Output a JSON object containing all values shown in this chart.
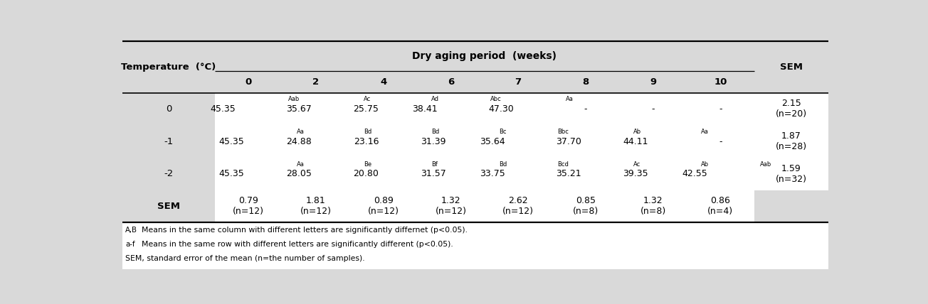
{
  "title": "Dry aging period (weeks)",
  "col_headers": [
    "0",
    "2",
    "4",
    "6",
    "7",
    "8",
    "9",
    "10"
  ],
  "row_labels": [
    "0",
    "-1",
    "-2",
    "SEM"
  ],
  "cell_data": [
    [
      [
        "45.35",
        "Aab"
      ],
      [
        "35.67",
        "Ac"
      ],
      [
        "25.75",
        "Ad"
      ],
      [
        "38.41",
        "Abc"
      ],
      [
        "47.30",
        "Aa"
      ],
      [
        "-",
        ""
      ],
      [
        "-",
        ""
      ],
      [
        "-",
        ""
      ]
    ],
    [
      [
        "45.35",
        "Aa"
      ],
      [
        "24.88",
        "Bd"
      ],
      [
        "23.16",
        "Bd"
      ],
      [
        "31.39",
        "Bc"
      ],
      [
        "35.64",
        "Bbc"
      ],
      [
        "37.70",
        "Ab"
      ],
      [
        "44.11",
        "Aa"
      ],
      [
        "-",
        ""
      ]
    ],
    [
      [
        "45.35",
        "Aa"
      ],
      [
        "28.05",
        "Be"
      ],
      [
        "20.80",
        "Bf"
      ],
      [
        "31.57",
        "Bd"
      ],
      [
        "33.75",
        "Bcd"
      ],
      [
        "35.21",
        "Ac"
      ],
      [
        "39.35",
        "Ab"
      ],
      [
        "42.55",
        "Aab"
      ]
    ],
    [
      [
        "0.79\n(n=12)",
        ""
      ],
      [
        "1.81\n(n=12)",
        ""
      ],
      [
        "0.89\n(n=12)",
        ""
      ],
      [
        "1.32\n(n=12)",
        ""
      ],
      [
        "2.62\n(n=12)",
        ""
      ],
      [
        "0.85\n(n=8)",
        ""
      ],
      [
        "1.32\n(n=8)",
        ""
      ],
      [
        "0.86\n(n=4)",
        ""
      ]
    ]
  ],
  "sem_col": [
    "2.15\n(n=20)",
    "1.87\n(n=28)",
    "1.59\n(n=32)",
    ""
  ],
  "footnotes": [
    [
      "A,B",
      "Means in the same column with different letters are significantly differnet (p<0.05)."
    ],
    [
      "a-f",
      "Means in the same row with different letters are significantly different (p<0.05)."
    ],
    [
      "SEM,",
      "standard error of the mean (n=the number of samples)."
    ]
  ],
  "bg_color": "#d9d9d9",
  "white": "#ffffff",
  "text_color": "#000000",
  "main_fs": 9.0,
  "header_fs": 9.5,
  "sup_fs": 6.0,
  "fn_fs": 7.8
}
